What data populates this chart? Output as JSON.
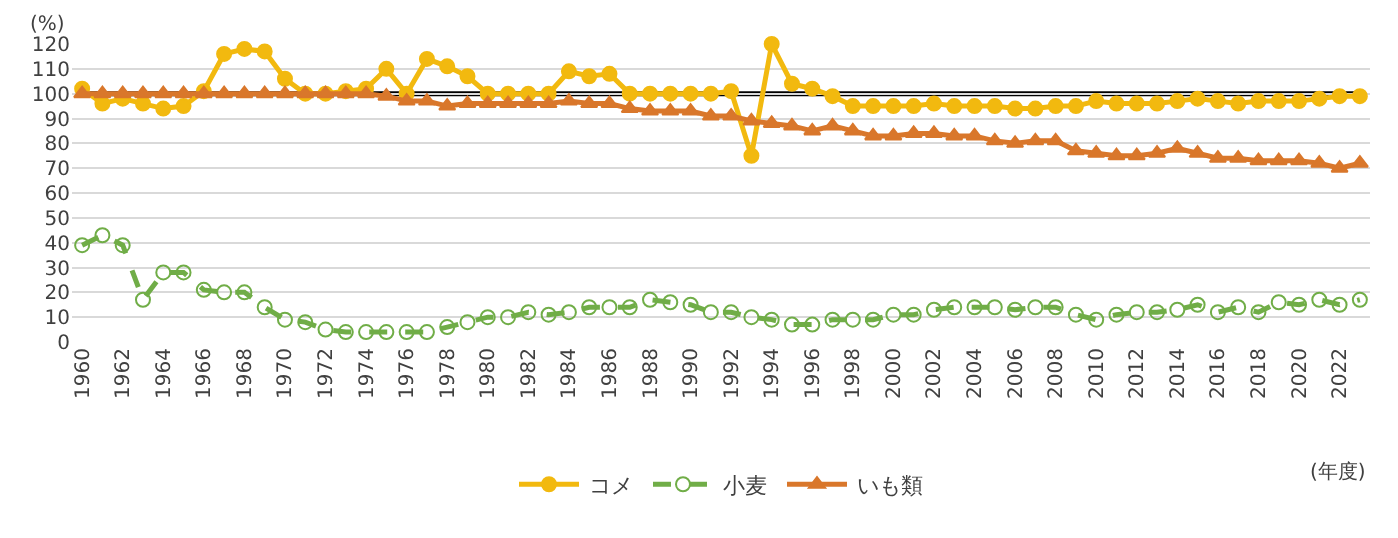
{
  "chart_data": {
    "type": "line",
    "ylabel": "(%)",
    "xlabel": "(年度)",
    "x": [
      1960,
      1961,
      1962,
      1963,
      1964,
      1965,
      1966,
      1967,
      1968,
      1969,
      1970,
      1971,
      1972,
      1973,
      1974,
      1975,
      1976,
      1977,
      1978,
      1979,
      1980,
      1981,
      1982,
      1983,
      1984,
      1985,
      1986,
      1987,
      1988,
      1989,
      1990,
      1991,
      1992,
      1993,
      1994,
      1995,
      1996,
      1997,
      1998,
      1999,
      2000,
      2001,
      2002,
      2003,
      2004,
      2005,
      2006,
      2007,
      2008,
      2009,
      2010,
      2011,
      2012,
      2013,
      2014,
      2015,
      2016,
      2017,
      2018,
      2019,
      2020,
      2021,
      2022,
      2023
    ],
    "series": [
      {
        "name": "コメ",
        "color": "#f2b90f",
        "marker": "circle",
        "line_style": "solid",
        "values": [
          102,
          96,
          98,
          96,
          94,
          95,
          101,
          116,
          118,
          117,
          106,
          100,
          100,
          101,
          102,
          110,
          100,
          114,
          111,
          107,
          100,
          100,
          100,
          100,
          109,
          107,
          108,
          100,
          100,
          100,
          100,
          100,
          101,
          75,
          120,
          104,
          102,
          99,
          95,
          95,
          95,
          95,
          96,
          95,
          95,
          95,
          94,
          94,
          95,
          95,
          97,
          96,
          96,
          96,
          97,
          98,
          97,
          96,
          97,
          97,
          97,
          98,
          99,
          99
        ]
      },
      {
        "name": "小麦",
        "color": "#70ad47",
        "marker": "circle-open",
        "line_style": "dashed",
        "values": [
          39,
          43,
          39,
          17,
          28,
          28,
          21,
          20,
          20,
          14,
          9,
          8,
          5,
          4,
          4,
          4,
          4,
          4,
          6,
          8,
          10,
          10,
          12,
          11,
          12,
          14,
          14,
          14,
          17,
          16,
          15,
          12,
          12,
          10,
          9,
          7,
          7,
          9,
          9,
          9,
          11,
          11,
          13,
          14,
          14,
          14,
          13,
          14,
          14,
          11,
          9,
          11,
          12,
          12,
          13,
          15,
          12,
          14,
          12,
          16,
          15,
          17,
          15,
          17
        ]
      },
      {
        "name": "いも類",
        "color": "#d9772b",
        "marker": "triangle",
        "line_style": "solid",
        "values": [
          100,
          100,
          100,
          100,
          100,
          100,
          100,
          100,
          100,
          100,
          100,
          100,
          100,
          100,
          100,
          99,
          97,
          97,
          95,
          96,
          96,
          96,
          96,
          96,
          97,
          96,
          96,
          94,
          93,
          93,
          93,
          91,
          91,
          89,
          88,
          87,
          85,
          87,
          85,
          83,
          83,
          84,
          84,
          83,
          83,
          81,
          80,
          81,
          81,
          77,
          76,
          75,
          75,
          76,
          78,
          76,
          74,
          74,
          73,
          73,
          73,
          72,
          70,
          72
        ]
      }
    ],
    "xlim": [
      1959.5,
      2023.5
    ],
    "xticks": [
      1960,
      1962,
      1964,
      1966,
      1968,
      1970,
      1972,
      1974,
      1976,
      1978,
      1980,
      1982,
      1984,
      1986,
      1988,
      1990,
      1992,
      1994,
      1996,
      1998,
      2000,
      2002,
      2004,
      2006,
      2008,
      2010,
      2012,
      2014,
      2016,
      2018,
      2020,
      2022
    ],
    "ylim": [
      0,
      120
    ],
    "yticks": [
      0,
      10,
      20,
      30,
      40,
      50,
      60,
      70,
      80,
      90,
      100,
      110,
      120
    ],
    "ref_lines": [
      {
        "axis": "y",
        "value": 100,
        "color": "#000000"
      }
    ],
    "grid": "y",
    "legend": "bottom"
  }
}
